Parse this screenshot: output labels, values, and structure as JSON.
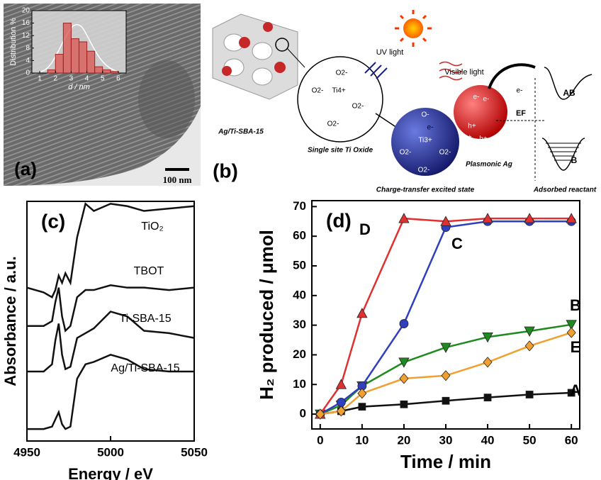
{
  "panel_a": {
    "label": "(a)",
    "scale_bar": "100 nm"
  },
  "panel_b": {
    "label": "(b)",
    "support": "Ag/Ti-SBA-15",
    "site": "Single site Ti Oxide",
    "uv": "UV light",
    "visible": "Visible light",
    "excited": "Charge-transfer excited state",
    "plasmonic": "Plasmonic Ag",
    "reactant": "Adsorbed reactant",
    "ab": "AB",
    "b": "B",
    "fermi": "EF",
    "ions": [
      "O2-",
      "O2-",
      "O2-",
      "Ti4+",
      "O2-",
      "O-",
      "Ti3+",
      "O2-",
      "O2-",
      "O2-",
      "e-",
      "e-",
      "e-",
      "e-",
      "h+",
      "h+",
      "h+"
    ]
  },
  "chart_data": [
    {
      "type": "histogram",
      "xlabel": "d / nm",
      "ylabel": "Distribution %",
      "bins": [
        1.5,
        2,
        2.5,
        3,
        3.5,
        4,
        4.5,
        5,
        5.5,
        6
      ],
      "values": [
        1,
        6,
        16,
        11,
        10,
        7,
        2,
        1,
        0.5
      ],
      "color": "#d9534f",
      "xlim": [
        0.5,
        6.5
      ],
      "ylim": [
        0,
        20
      ],
      "xticks": [
        1,
        2,
        3,
        4,
        5,
        6
      ],
      "yticks": [
        0,
        4,
        8,
        12,
        16,
        20
      ]
    },
    {
      "type": "line",
      "panel_label": "(c)",
      "xlabel": "Energy / eV",
      "ylabel": "Absorbance / a.u.",
      "x": [
        4950,
        4960,
        4965,
        4967,
        4969,
        4971,
        4973,
        4976,
        4980,
        4985,
        4990,
        5000,
        5010,
        5020,
        5035,
        5050
      ],
      "xlim": [
        4950,
        5050
      ],
      "ylim": [
        0,
        10
      ],
      "xticks": [
        4950,
        5000,
        5050
      ],
      "series": [
        {
          "name": "TiO₂",
          "color": "#111111",
          "values": [
            6.4,
            6.2,
            6.0,
            6.3,
            6.9,
            6.6,
            7.0,
            6.6,
            8.5,
            9.9,
            9.6,
            9.9,
            9.8,
            9.6,
            9.7,
            9.8
          ]
        },
        {
          "name": "TBOT",
          "color": "#111111",
          "values": [
            4.8,
            4.8,
            5.0,
            5.8,
            6.4,
            5.2,
            4.6,
            4.8,
            6.0,
            6.3,
            6.3,
            6.5,
            6.4,
            6.4,
            6.3,
            6.4
          ]
        },
        {
          "name": "Ti-SBA-15",
          "color": "#111111",
          "values": [
            2.9,
            2.9,
            3.2,
            4.2,
            4.9,
            3.6,
            3.0,
            3.1,
            4.3,
            4.5,
            4.7,
            5.4,
            5.2,
            4.6,
            4.5,
            4.3
          ]
        },
        {
          "name": "Ag/Ti-SBA-15",
          "color": "#111111",
          "values": [
            0.5,
            0.5,
            0.6,
            0.9,
            1.2,
            0.7,
            0.5,
            0.6,
            2.6,
            3.2,
            3.3,
            3.6,
            3.4,
            3.0,
            2.9,
            2.9
          ]
        }
      ]
    },
    {
      "type": "line",
      "panel_label": "(d)",
      "xlabel": "Time / min",
      "ylabel": "H₂ produced / μmol",
      "x": [
        0,
        5,
        10,
        20,
        30,
        40,
        50,
        60
      ],
      "xlim": [
        -2,
        62
      ],
      "ylim": [
        -5,
        72
      ],
      "xticks": [
        0,
        10,
        20,
        30,
        40,
        50,
        60
      ],
      "yticks": [
        0,
        10,
        20,
        30,
        40,
        50,
        60,
        70
      ],
      "series": [
        {
          "name": "A",
          "color": "#111111",
          "marker": "square",
          "values": [
            0,
            1,
            2.5,
            3.3,
            4.5,
            5.6,
            6.6,
            7.2
          ]
        },
        {
          "name": "B",
          "color": "#1f8a1f",
          "marker": "triangle-down",
          "values": [
            0,
            3,
            9.5,
            17.5,
            22.5,
            26,
            28,
            30.2
          ]
        },
        {
          "name": "C",
          "color": "#2f3fc0",
          "marker": "circle",
          "values": [
            0,
            4,
            9.5,
            30.5,
            63,
            65,
            65,
            65
          ]
        },
        {
          "name": "D",
          "color": "#e03030",
          "marker": "triangle",
          "values": [
            0,
            10,
            34,
            66,
            65,
            66,
            66,
            66
          ]
        },
        {
          "name": "E",
          "color": "#f0a030",
          "marker": "diamond",
          "values": [
            0,
            1,
            7,
            12,
            13,
            17.5,
            23,
            27.5
          ]
        }
      ]
    }
  ]
}
